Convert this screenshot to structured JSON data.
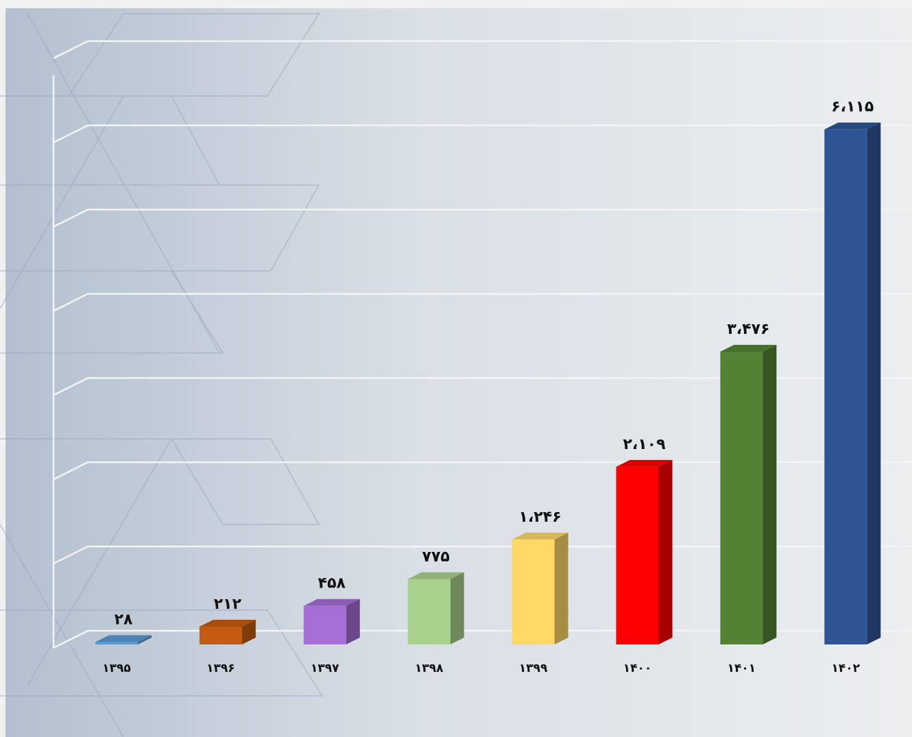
{
  "chart_data": {
    "type": "bar3d",
    "categories": [
      "۱۳۹۵",
      "۱۳۹۶",
      "۱۳۹۷",
      "۱۳۹۸",
      "۱۳۹۹",
      "۱۴۰۰",
      "۱۴۰۱",
      "۱۴۰۲"
    ],
    "values": [
      28,
      212,
      458,
      775,
      1246,
      2109,
      3476,
      6115
    ],
    "value_labels": [
      "۲۸",
      "۲۱۲",
      "۴۵۸",
      "۷۷۵",
      "۱،۲۴۶",
      "۲،۱۰۹",
      "۳،۴۷۶",
      "۶،۱۱۵"
    ],
    "colors": [
      "#5b9bd5",
      "#c55a11",
      "#a56fd6",
      "#a9d18e",
      "#ffd966",
      "#ff0000",
      "#548235",
      "#2f5597"
    ],
    "ylim": [
      0,
      7000
    ],
    "yticks": [
      0,
      1000,
      2000,
      3000,
      4000,
      5000,
      6000,
      7000
    ],
    "grid": true
  }
}
